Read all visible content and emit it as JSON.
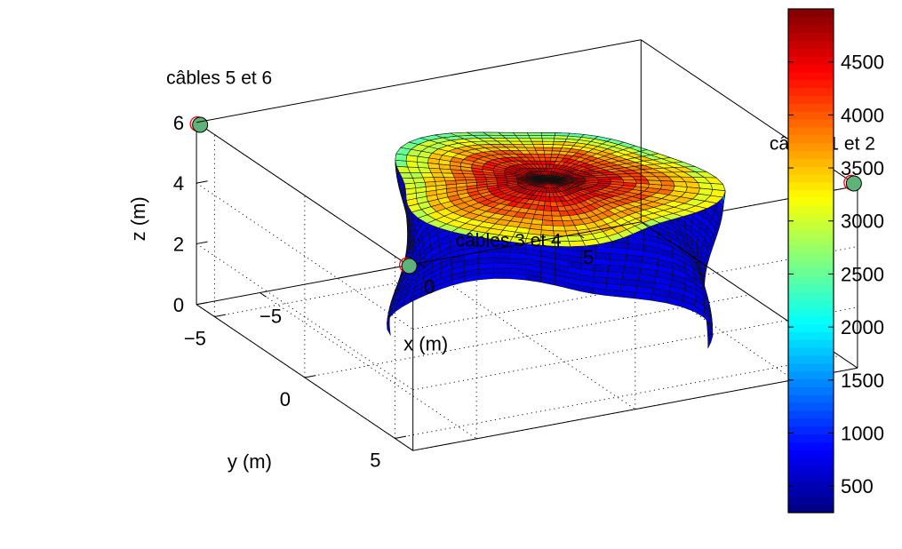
{
  "chart_data": {
    "type": "surface3d",
    "axes": {
      "x": {
        "label": "x (m)",
        "range": [
          -7,
          7
        ],
        "ticks": [
          -5,
          0,
          5
        ],
        "tick_labels": [
          "−5",
          "0",
          "5"
        ]
      },
      "y": {
        "label": "y (m)",
        "range": [
          -6,
          6
        ],
        "ticks": [
          -5,
          0,
          5
        ],
        "tick_labels": [
          "−5",
          "0",
          "5"
        ]
      },
      "z": {
        "label": "z (m)",
        "range": [
          0,
          6
        ],
        "ticks": [
          0,
          2,
          4,
          6
        ],
        "tick_labels": [
          "0",
          "2",
          "4",
          "6"
        ]
      }
    },
    "grid": true,
    "box": true,
    "colorbar": {
      "range": [
        250,
        5000
      ],
      "ticks": [
        500,
        1000,
        1500,
        2000,
        2500,
        3000,
        3500,
        4000,
        4500
      ],
      "tick_labels": [
        "500",
        "1000",
        "1500",
        "2000",
        "2500",
        "3000",
        "3500",
        "4000",
        "4500"
      ],
      "colormap": "jet"
    },
    "surface": {
      "shape": "deformed cylinder",
      "center_xy": [
        0.2,
        0.8
      ],
      "radius_x": 4.2,
      "radius_y": 4.4,
      "z_range": [
        0.2,
        5.2
      ],
      "side_value": 700,
      "side_top_value": 2200,
      "top_center_value": 4900,
      "top_edge_value": 3100,
      "edge_color": "#000000"
    },
    "markers": [
      {
        "name": "câbles 1 et 2",
        "x": 7.0,
        "y": 5.8,
        "z": 6.0,
        "label": "câbles 1 et 2"
      },
      {
        "name": "câbles 3 et 4",
        "x": -7.0,
        "y": 5.8,
        "z": 6.0,
        "label": "câbles 3 et 4"
      },
      {
        "name": "câbles 5 et 6",
        "x": -7.0,
        "y": -5.8,
        "z": 6.0,
        "label": "câbles 5 et 6"
      }
    ],
    "marker_style": {
      "fill": "#5fb37a",
      "outline": "#000000",
      "ghost_outline": "#ff0000"
    }
  }
}
